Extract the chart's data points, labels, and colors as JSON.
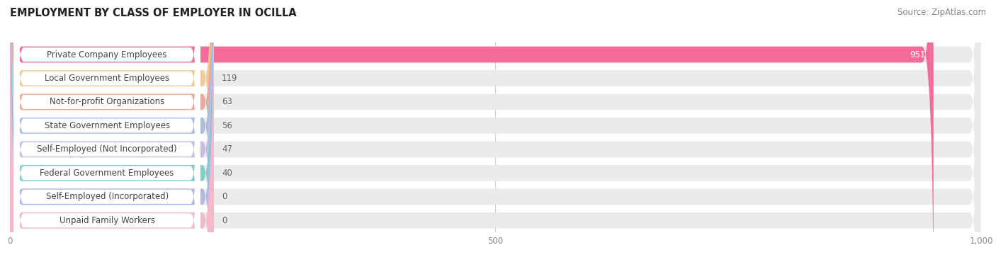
{
  "title": "EMPLOYMENT BY CLASS OF EMPLOYER IN OCILLA",
  "source": "Source: ZipAtlas.com",
  "categories": [
    "Private Company Employees",
    "Local Government Employees",
    "Not-for-profit Organizations",
    "State Government Employees",
    "Self-Employed (Not Incorporated)",
    "Federal Government Employees",
    "Self-Employed (Incorporated)",
    "Unpaid Family Workers"
  ],
  "values": [
    951,
    119,
    63,
    56,
    47,
    40,
    0,
    0
  ],
  "bar_colors": [
    "#f26b9a",
    "#f5c98a",
    "#f0a898",
    "#a8bfe0",
    "#c9bbe8",
    "#7ececa",
    "#b0b8e8",
    "#f9b8c8"
  ],
  "bar_bg_color": "#ebebeb",
  "xlim_max": 1000,
  "xticks": [
    0,
    500,
    1000
  ],
  "xticklabels": [
    "0",
    "500",
    "1,000"
  ],
  "title_fontsize": 10.5,
  "source_fontsize": 8.5,
  "label_fontsize": 8.5,
  "value_fontsize": 8.5,
  "background_color": "#ffffff",
  "grid_color": "#cccccc",
  "label_box_color": "#ffffff",
  "label_text_color": "#444444",
  "value_text_color_inside": "#ffffff",
  "value_text_color_outside": "#666666"
}
